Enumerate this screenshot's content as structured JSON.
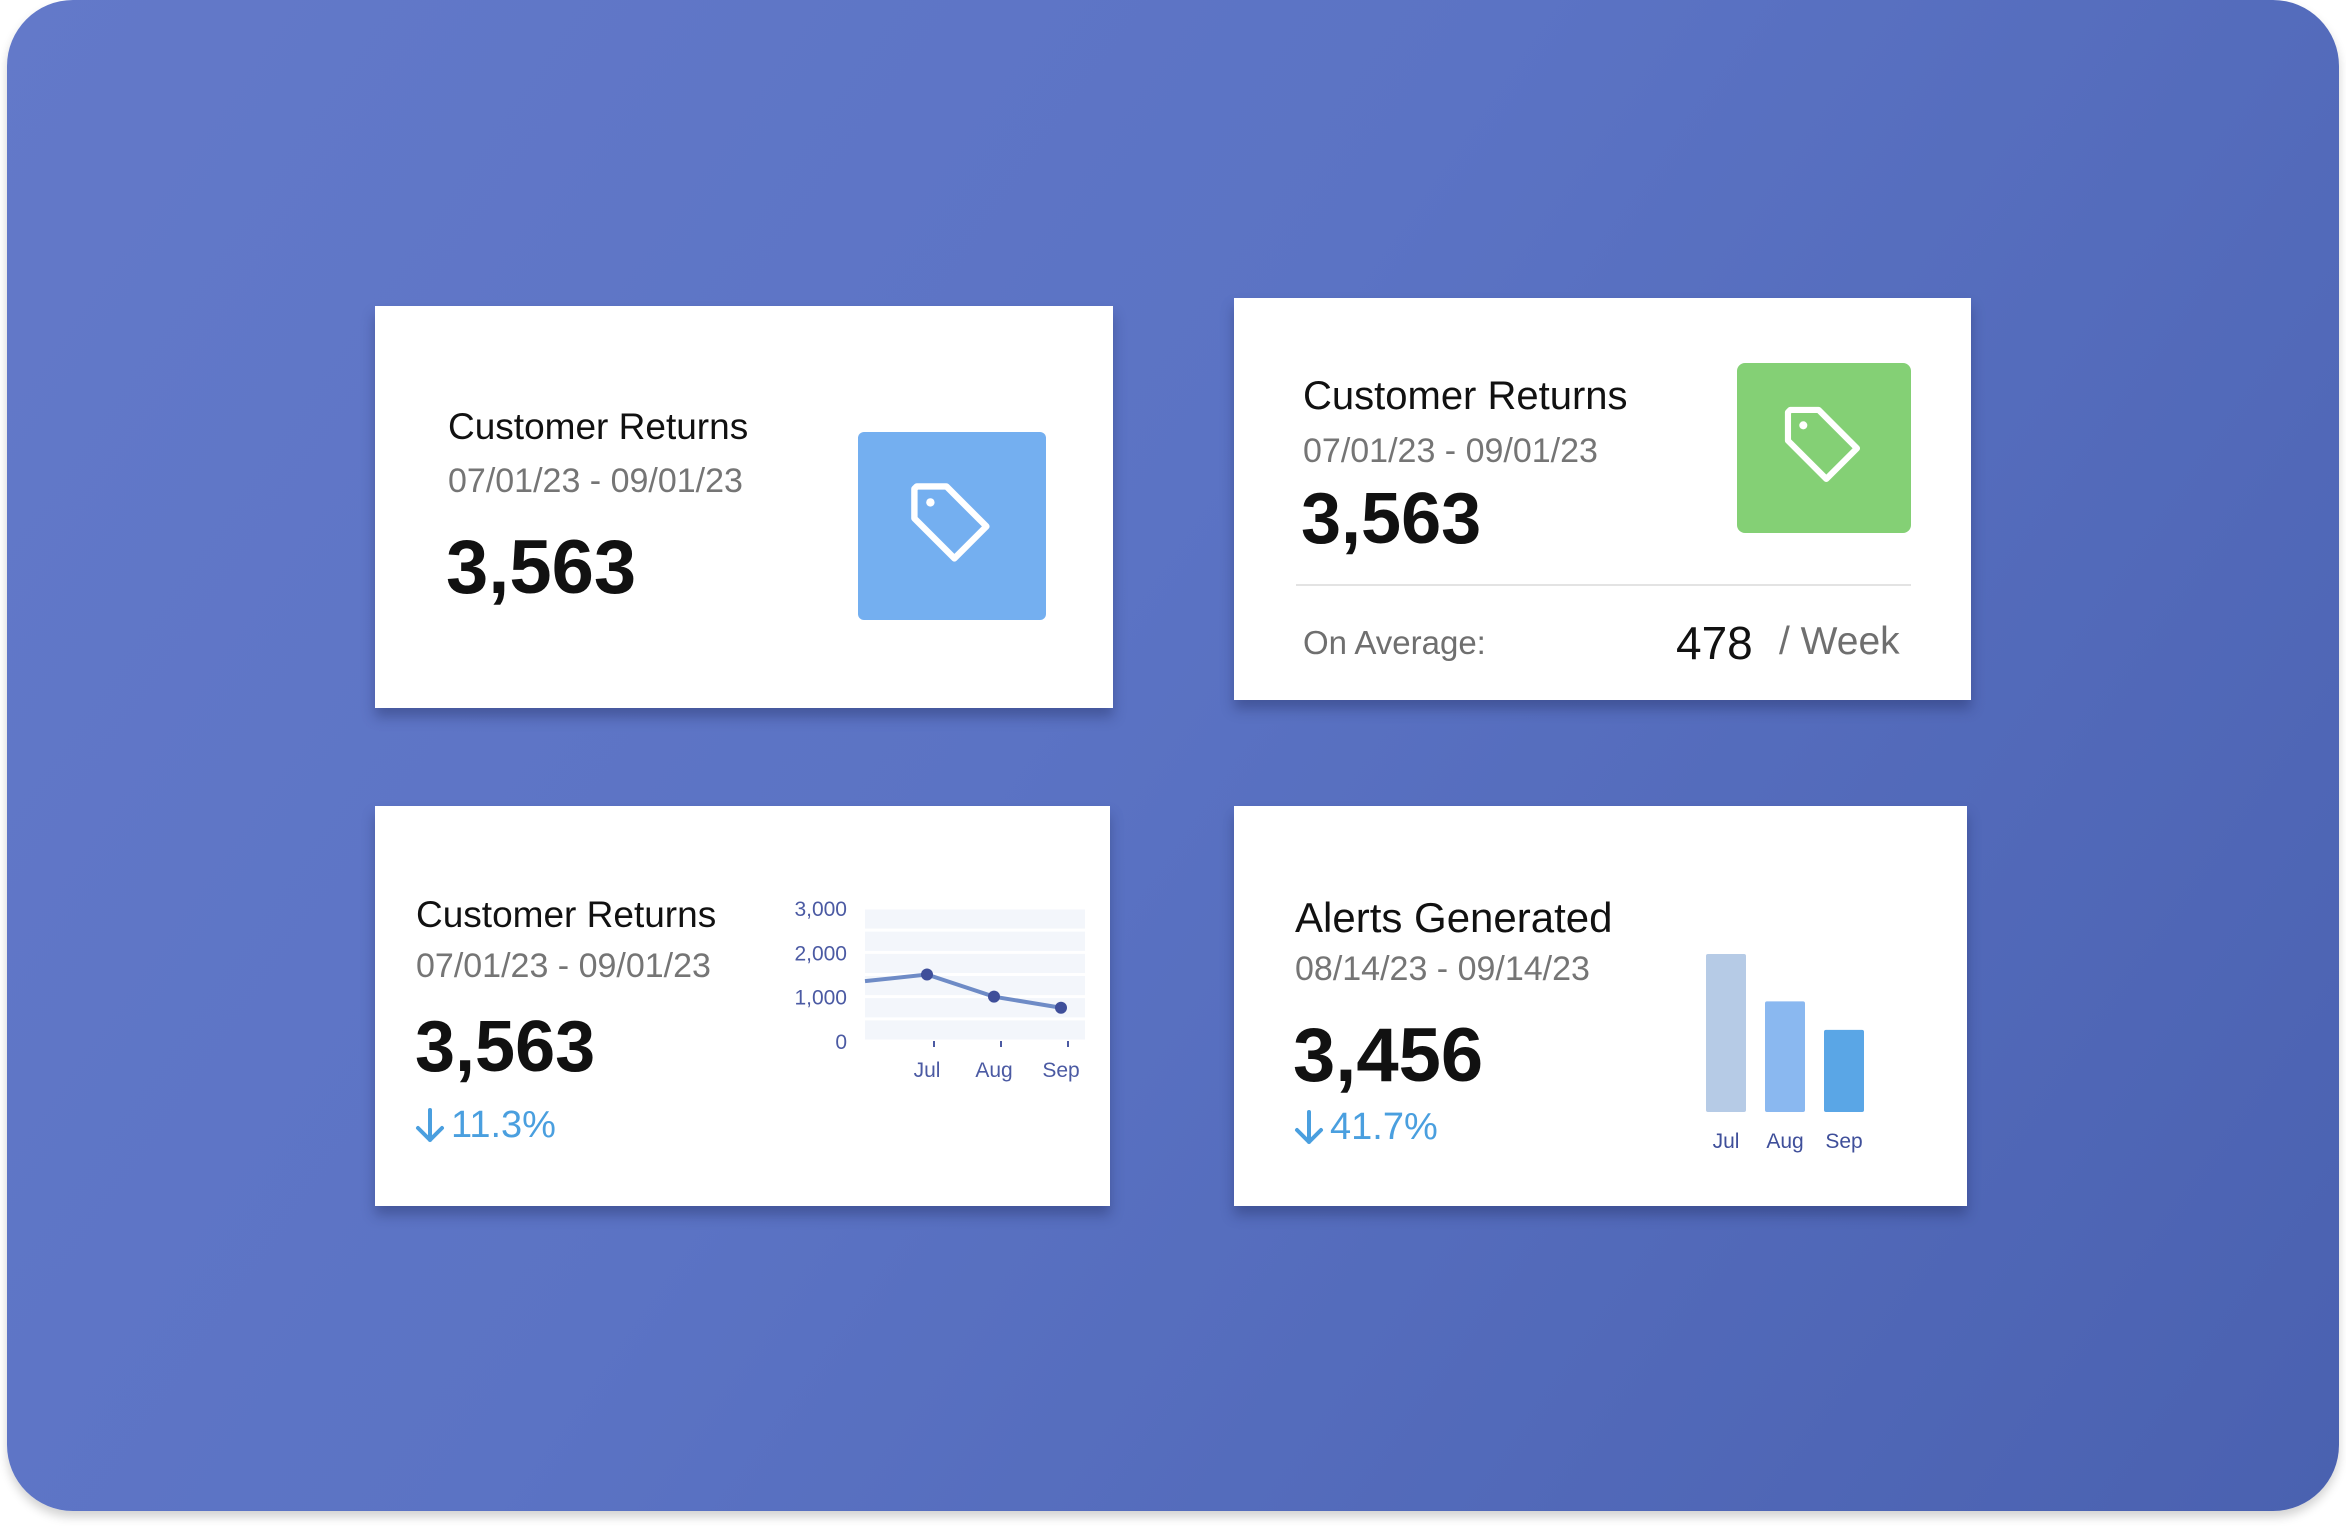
{
  "colors": {
    "background": "#5b73c4",
    "accent_blue": "#74aff0",
    "accent_green": "#84d075",
    "trend_down": "#4a9fdf",
    "line_series": "#6e8bc6"
  },
  "cards": [
    {
      "title": "Customer Returns",
      "date_range": "07/01/23 - 09/01/23",
      "value": "3,563",
      "icon": "tag-icon",
      "icon_color": "#74aff0"
    },
    {
      "title": "Customer Returns",
      "date_range": "07/01/23 - 09/01/23",
      "value": "3,563",
      "icon": "tag-icon",
      "icon_color": "#84d075",
      "average_label": "On Average:",
      "average_value": "478",
      "average_unit": "/ Week"
    },
    {
      "title": "Customer Returns",
      "date_range": "07/01/23 - 09/01/23",
      "value": "3,563",
      "change_icon": "arrow-down-icon",
      "change": "11.3%"
    },
    {
      "title": "Alerts Generated",
      "date_range": "08/14/23 - 09/14/23",
      "value": "3,456",
      "change_icon": "arrow-down-icon",
      "change": "41.7%"
    }
  ],
  "chart_data": [
    {
      "type": "line",
      "categories": [
        "Jul",
        "Aug",
        "Sep"
      ],
      "y_ticks": [
        "3,000",
        "2,000",
        "1,000",
        "0"
      ],
      "y_tick_values": [
        3000,
        2000,
        1000,
        0
      ],
      "ylim": [
        0,
        3000
      ],
      "grid": true,
      "series": [
        {
          "values": [
            1500,
            1000,
            750
          ],
          "color": "#6e8bc6"
        }
      ],
      "lead_in_value": 1350
    },
    {
      "type": "bar",
      "categories": [
        "Jul",
        "Aug",
        "Sep"
      ],
      "values": [
        100,
        70,
        52
      ],
      "colors": [
        "#b6cbe6",
        "#8ab8f0",
        "#5aa6e6"
      ],
      "grid": false
    }
  ]
}
